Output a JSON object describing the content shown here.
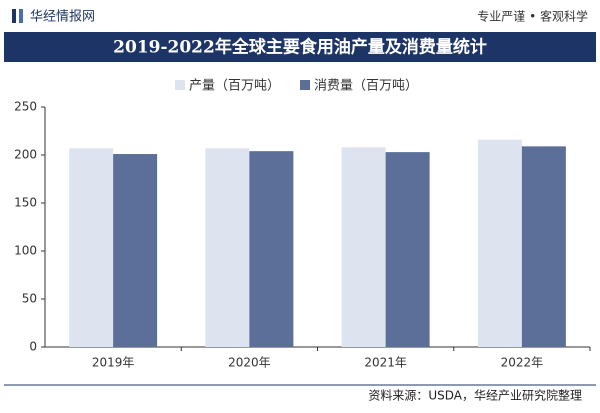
{
  "header": {
    "logo": "华经情报网",
    "tagline": "专业严谨 • 客观科学"
  },
  "chart_data": {
    "type": "bar",
    "title": "2019-2022年全球主要食用油产量及消费量统计",
    "categories": [
      "2019年",
      "2020年",
      "2021年",
      "2022年"
    ],
    "series": [
      {
        "name": "产量（百万吨）",
        "color": "#dde3ef",
        "values": [
          207,
          207,
          208,
          216
        ]
      },
      {
        "name": "消费量（百万吨）",
        "color": "#5b6f98",
        "values": [
          201,
          204,
          203,
          209
        ]
      }
    ],
    "ylim": [
      0,
      250
    ],
    "yticks": [
      0,
      50,
      100,
      150,
      200,
      250
    ],
    "grid": false,
    "legend": "top",
    "source": "资料来源：USDA，华经产业研究院整理"
  }
}
